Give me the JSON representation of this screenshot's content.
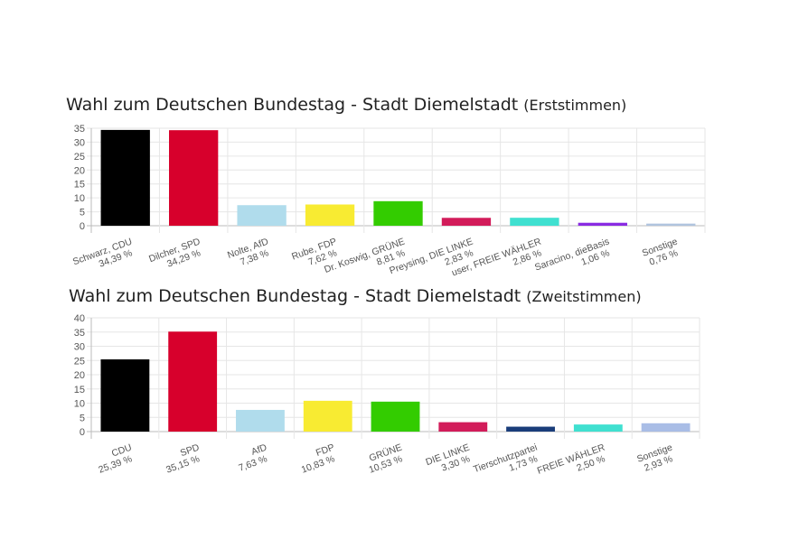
{
  "chart_data": [
    {
      "type": "bar",
      "title": "Wahl zum Deutschen Bundestag - Stadt Diemelstadt",
      "subtitle": "(Erststimmen)",
      "categories": [
        "Schwarz, CDU",
        "Dilcher, SPD",
        "Nolte, AfD",
        "Rube, FDP",
        "Dr. Koswig, GRÜNE",
        "Preysing, DIE LINKE",
        "user, FREIE WÄHLER",
        "Saracino, dieBasis",
        "Sonstige"
      ],
      "value_labels": [
        "34,39 %",
        "34,29 %",
        "7,38 %",
        "7,62 %",
        "8,81 %",
        "2,83 %",
        "2,86 %",
        "1,06 %",
        "0,76 %"
      ],
      "values": [
        34.39,
        34.29,
        7.38,
        7.62,
        8.81,
        2.83,
        2.86,
        1.06,
        0.76
      ],
      "colors": [
        "#000000",
        "#d7002c",
        "#b0dcec",
        "#f8eb32",
        "#33cc00",
        "#d21c5a",
        "#40e0d0",
        "#8a2be2",
        "#b0c4de"
      ],
      "ylim": [
        0,
        35
      ],
      "yticks": [
        0,
        5,
        10,
        15,
        20,
        25,
        30,
        35
      ],
      "grid": true
    },
    {
      "type": "bar",
      "title": "Wahl zum Deutschen Bundestag - Stadt Diemelstadt",
      "subtitle": "(Zweitstimmen)",
      "categories": [
        "CDU",
        "SPD",
        "AfD",
        "FDP",
        "GRÜNE",
        "DIE LINKE",
        "Tierschutzpartei",
        "FREIE WÄHLER",
        "Sonstige"
      ],
      "value_labels": [
        "25,39 %",
        "35,15 %",
        "7,63 %",
        "10,83 %",
        "10,53 %",
        "3,30 %",
        "1,73 %",
        "2,50 %",
        "2,93 %"
      ],
      "values": [
        25.39,
        35.15,
        7.63,
        10.83,
        10.53,
        3.3,
        1.73,
        2.5,
        2.93
      ],
      "colors": [
        "#000000",
        "#d7002c",
        "#b0dcec",
        "#f8eb32",
        "#33cc00",
        "#d21c5a",
        "#1a3d7a",
        "#40e0d0",
        "#a9bde6"
      ],
      "ylim": [
        0,
        40
      ],
      "yticks": [
        0,
        5,
        10,
        15,
        20,
        25,
        30,
        35,
        40
      ],
      "grid": true
    }
  ]
}
